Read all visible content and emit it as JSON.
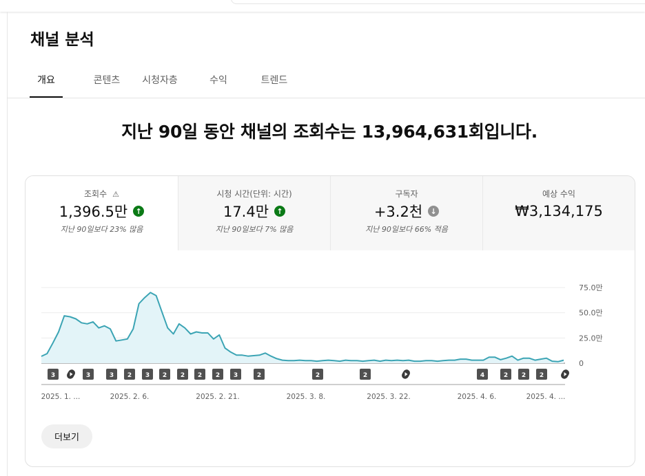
{
  "header": {
    "title": "채널 분석"
  },
  "tabs": [
    {
      "label": "개요",
      "active": true
    },
    {
      "label": "콘텐츠"
    },
    {
      "label": "시청자층"
    },
    {
      "label": "수익"
    },
    {
      "label": "트렌드"
    }
  ],
  "headline": {
    "prefix": "지난 90일 동안 채널의 조회수는 ",
    "value": "13,964,631",
    "suffix": "회입니다."
  },
  "metrics": [
    {
      "label": "조회수",
      "value": "1,396.5만",
      "trend": "up",
      "delta": "지난 90일보다 23% 많음",
      "warning_icon": "warning-icon"
    },
    {
      "label": "시청 시간(단위: 시간)",
      "value": "17.4만",
      "trend": "up",
      "delta": "지난 90일보다 7% 많음"
    },
    {
      "label": "구독자",
      "value": "+3.2천",
      "trend": "down",
      "delta": "지난 90일보다 66% 적음"
    },
    {
      "label": "예상 수익",
      "value": "₩3,134,175"
    }
  ],
  "colors": {
    "line": "#3ba4b4",
    "fill": "#e3f4f8",
    "up": "#0b7a16",
    "down": "#909090",
    "marker": "#505050"
  },
  "chart_data": {
    "type": "area",
    "metric": "조회수",
    "ylim": [
      0,
      75
    ],
    "yunit": "만",
    "y_ticks": [
      "0",
      "25.0만",
      "50.0만",
      "75.0만"
    ],
    "x_ticks": [
      "2025. 1. ...",
      "2025. 2. 6.",
      "2025. 2. 21.",
      "2025. 3. 8.",
      "2025. 3. 22.",
      "2025. 4. 6.",
      "2025. 4. ..."
    ],
    "grid": true,
    "values": [
      6.8,
      9.5,
      20,
      31,
      47,
      46,
      44,
      40,
      39,
      41,
      35,
      37,
      34,
      22,
      23,
      24,
      34,
      59,
      65,
      70,
      67,
      51,
      35,
      29,
      39,
      35,
      29,
      31,
      30,
      30,
      24,
      28,
      15,
      11,
      8,
      8,
      7,
      7.5,
      8,
      10,
      7,
      4.5,
      3,
      2.5,
      2.5,
      3,
      2.5,
      2.5,
      2,
      2.5,
      3,
      2.5,
      2,
      3,
      2.5,
      2.5,
      2,
      2.5,
      3,
      2,
      3,
      2.5,
      3,
      2.5,
      3,
      2,
      2,
      2.5,
      2.5,
      2,
      2.5,
      3,
      3,
      4,
      4,
      3,
      3,
      3,
      6,
      6,
      3.5,
      5,
      7,
      3,
      5,
      5,
      3,
      4,
      5,
      2,
      1.5,
      3
    ],
    "upload_markers": [
      "3",
      "shorts",
      "3",
      "3",
      "2",
      "3",
      "2",
      "2",
      "2",
      "2",
      "3",
      "2",
      "2",
      "2",
      "shorts",
      "4",
      "2",
      "2",
      "2",
      "shorts"
    ]
  },
  "footer": {
    "more_label": "더보기"
  }
}
